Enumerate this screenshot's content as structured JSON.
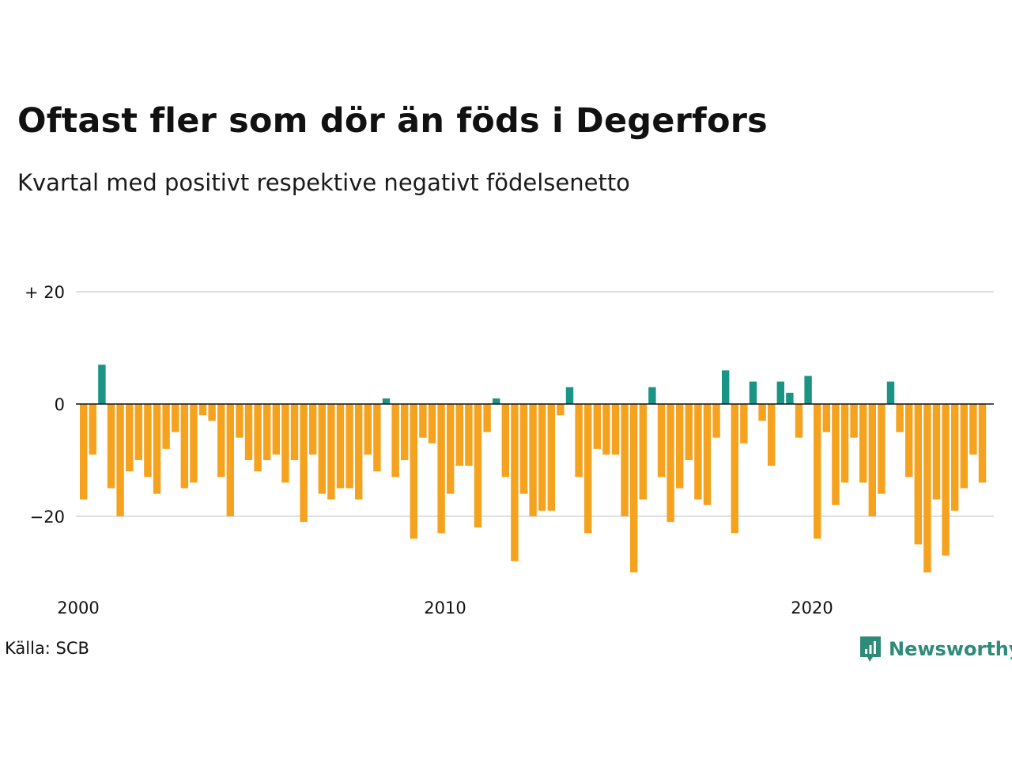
{
  "title": "Oftast fler som dör än föds i Degerfors",
  "subtitle": "Kvartal med positivt respektive negativt födelsenetto",
  "source": "Källa: SCB",
  "brand": {
    "name": "Newsworthy",
    "icon": "newsworthy-logo-icon"
  },
  "colors": {
    "positive": "#1a9485",
    "negative": "#f5a21f",
    "grid": "#e0e0e0",
    "zero": "#111111",
    "brand": "#2e8b7a"
  },
  "chart_data": {
    "type": "bar",
    "ylim": [
      -30,
      20
    ],
    "y_ticks": [
      20,
      0,
      -20
    ],
    "y_tick_labels": [
      "+ 20",
      "0",
      "−20"
    ],
    "x_ticks": [
      {
        "label": "2000",
        "x": 2000
      },
      {
        "label": "2010",
        "x": 2010
      },
      {
        "label": "2020",
        "x": 2020
      }
    ],
    "x_start": 2000,
    "bar_period": "quarter",
    "grid": true,
    "legend": "none",
    "values": [
      -17,
      -9,
      7,
      -15,
      -20,
      -12,
      -10,
      -13,
      -16,
      -8,
      -5,
      -15,
      -14,
      -2,
      -3,
      -13,
      -20,
      -6,
      -10,
      -12,
      -10,
      -9,
      -14,
      -10,
      -21,
      -9,
      -16,
      -17,
      -15,
      -15,
      -17,
      -9,
      -12,
      1,
      -13,
      -10,
      -24,
      -6,
      -7,
      -23,
      -16,
      -11,
      -11,
      -22,
      -5,
      1,
      -13,
      -28,
      -16,
      -20,
      -19,
      -19,
      -2,
      3,
      -13,
      -23,
      -8,
      -9,
      -9,
      -20,
      -30,
      -17,
      3,
      -13,
      -21,
      -15,
      -10,
      -17,
      -18,
      -6,
      6,
      -23,
      -7,
      4,
      -3,
      -11,
      4,
      2,
      -6,
      5,
      -24,
      -5,
      -18,
      -14,
      -6,
      -14,
      -20,
      -16,
      4,
      -5,
      -13,
      -25,
      -30,
      -17,
      -27,
      -19,
      -15,
      -9,
      -14
    ]
  }
}
